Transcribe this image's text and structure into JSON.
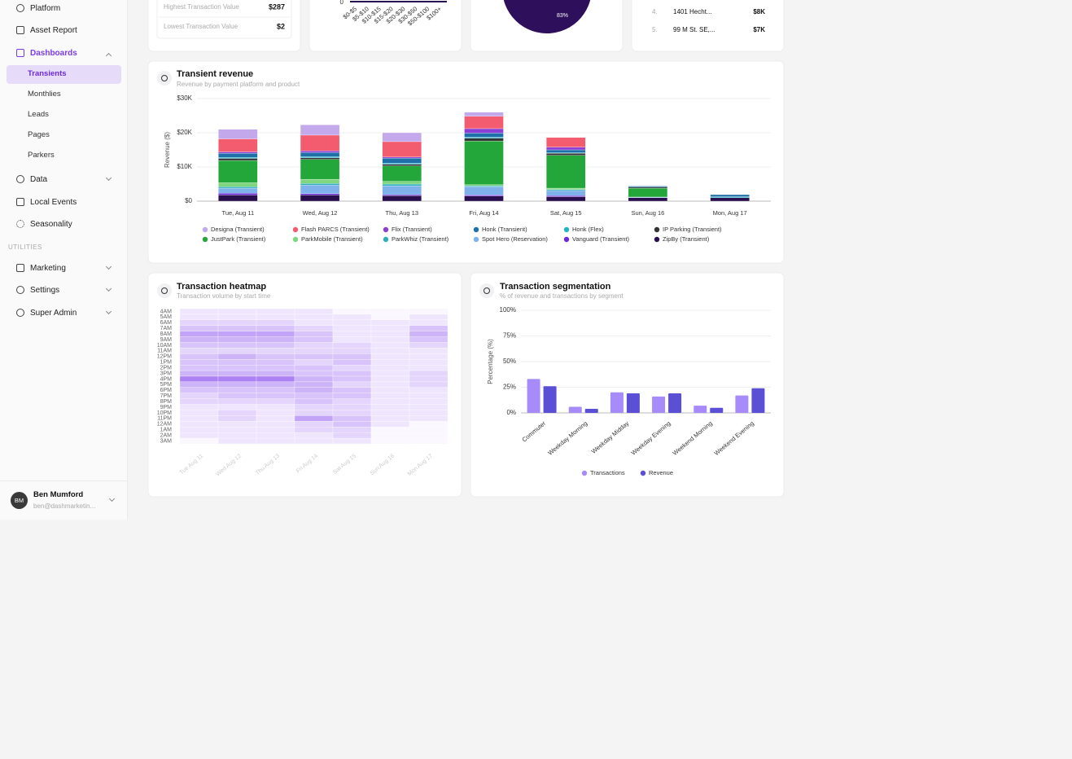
{
  "sidebar": {
    "nav": [
      "Platform",
      "Asset Report",
      "Dashboards"
    ],
    "dashboards": [
      "Transients",
      "Monthlies",
      "Leads",
      "Pages",
      "Parkers"
    ],
    "nav2": [
      "Data",
      "Local Events",
      "Seasonality"
    ],
    "utilities_heading": "UTILITIES",
    "utilities": [
      "Marketing",
      "Settings",
      "Super Admin"
    ],
    "user": {
      "initials": "BM",
      "name": "Ben Mumford",
      "email": "ben@dashmarketin..."
    }
  },
  "summary_card": {
    "rows": [
      {
        "label": "Highest Transaction Value",
        "value": "$287"
      },
      {
        "label": "Lowest Transaction Value",
        "value": "$2"
      }
    ]
  },
  "distribution_card": {
    "chart": {
      "type": "bar",
      "categories": [
        "$0-$5",
        "$5-$10",
        "$10-$15",
        "$15-$20",
        "$20-$30",
        "$30-$50",
        "$50-$100",
        "$100+"
      ],
      "yticks": [
        0
      ]
    }
  },
  "share_card": {
    "chart": {
      "type": "pie",
      "values": [
        83
      ],
      "value_labels": [
        "83%"
      ],
      "color": "#2e0f5c"
    }
  },
  "locations_card": {
    "rows": [
      {
        "rank": "4.",
        "name": "1401 Hecht...",
        "value": "$8K"
      },
      {
        "rank": "5.",
        "name": "99 M St. SE,...",
        "value": "$7K"
      }
    ]
  },
  "transient_revenue": {
    "title": "Transient revenue",
    "subtitle": "Revenue by payment platform and product",
    "chart": {
      "type": "bar",
      "stacked": true,
      "ylabel": "Revenue ($)",
      "categories": [
        "Tue, Aug 11",
        "Wed, Aug 12",
        "Thu, Aug 13",
        "Fri, Aug 14",
        "Sat, Aug 15",
        "Sun, Aug 16",
        "Mon, Aug 17"
      ],
      "series": [
        {
          "name": "Designa (Transient)",
          "color": "#c4a8ec",
          "values": [
            2800,
            3000,
            2600,
            1200,
            0,
            0,
            0
          ]
        },
        {
          "name": "Flash PARCS (Transient)",
          "color": "#f25c6e",
          "values": [
            3800,
            4600,
            4500,
            3600,
            2800,
            0,
            0
          ]
        },
        {
          "name": "Flix (Transient)",
          "color": "#8b3fd6",
          "values": [
            400,
            500,
            300,
            1300,
            800,
            0,
            0
          ]
        },
        {
          "name": "Honk (Transient)",
          "color": "#1f6fa8",
          "values": [
            1200,
            1200,
            1500,
            1200,
            800,
            300,
            600
          ]
        },
        {
          "name": "Honk (Flex)",
          "color": "#22b3c9",
          "values": [
            300,
            300,
            300,
            300,
            200,
            0,
            300
          ]
        },
        {
          "name": "IP Parking (Transient)",
          "color": "#333333",
          "values": [
            600,
            500,
            500,
            800,
            600,
            300,
            0
          ]
        },
        {
          "name": "JustPark (Transient)",
          "color": "#23a63a",
          "values": [
            6500,
            5800,
            4500,
            12800,
            9600,
            2600,
            0
          ]
        },
        {
          "name": "ParkMobile (Transient)",
          "color": "#7ed67e",
          "values": [
            1200,
            1200,
            800,
            300,
            400,
            0,
            0
          ]
        },
        {
          "name": "ParkWhiz (Transient)",
          "color": "#2bb0b8",
          "values": [
            400,
            500,
            500,
            300,
            300,
            0,
            0
          ]
        },
        {
          "name": "Spot Hero (Reservation)",
          "color": "#7fb2ea",
          "values": [
            1500,
            2500,
            2600,
            2400,
            1500,
            200,
            0
          ]
        },
        {
          "name": "Vanguard (Transient)",
          "color": "#6d28d9",
          "values": [
            500,
            400,
            300,
            300,
            300,
            0,
            0
          ]
        },
        {
          "name": "ZipBy (Transient)",
          "color": "#2a0f4f",
          "values": [
            1800,
            1800,
            1600,
            1500,
            1300,
            1000,
            1000
          ]
        }
      ],
      "ylim": [
        0,
        30000
      ],
      "yticks": [
        {
          "value": 0,
          "label": "$0"
        },
        {
          "value": 10000,
          "label": "$10K"
        },
        {
          "value": 20000,
          "label": "$20K"
        },
        {
          "value": 30000,
          "label": "$30K"
        }
      ],
      "grid": true,
      "legend": "bottom"
    }
  },
  "transaction_heatmap": {
    "title": "Transaction heatmap",
    "subtitle": "Transaction volume by start time",
    "chart": {
      "type": "heatmap",
      "color": "#7c3aed",
      "categories": [
        "Tue Aug 11",
        "Wed Aug 12",
        "Thu Aug 13",
        "Fri Aug 14",
        "Sat Aug 15",
        "Sun Aug 16",
        "Mon Aug 17"
      ],
      "rows": [
        "4AM",
        "5AM",
        "6AM",
        "7AM",
        "8AM",
        "9AM",
        "10AM",
        "11AM",
        "12PM",
        "1PM",
        "2PM",
        "3PM",
        "4PM",
        "5PM",
        "6PM",
        "7PM",
        "8PM",
        "9PM",
        "10PM",
        "11PM",
        "12AM",
        "1AM",
        "2AM",
        "3AM"
      ],
      "values": [
        [
          1,
          1,
          1,
          1,
          0,
          0,
          0
        ],
        [
          1,
          1,
          1,
          1,
          1,
          0,
          1
        ],
        [
          2,
          2,
          2,
          1,
          1,
          1,
          1
        ],
        [
          3,
          3,
          3,
          2,
          1,
          1,
          3
        ],
        [
          5,
          5,
          5,
          3,
          1,
          1,
          4
        ],
        [
          4,
          4,
          4,
          3,
          1,
          1,
          3
        ],
        [
          3,
          3,
          3,
          2,
          2,
          1,
          2
        ],
        [
          2,
          2,
          2,
          2,
          2,
          1,
          1
        ],
        [
          3,
          4,
          3,
          3,
          3,
          1,
          1
        ],
        [
          3,
          3,
          3,
          2,
          3,
          1,
          1
        ],
        [
          3,
          3,
          3,
          3,
          2,
          1,
          1
        ],
        [
          4,
          4,
          4,
          3,
          3,
          1,
          2
        ],
        [
          7,
          7,
          7,
          4,
          3,
          1,
          2
        ],
        [
          4,
          4,
          4,
          4,
          2,
          1,
          2
        ],
        [
          3,
          3,
          3,
          4,
          3,
          1,
          1
        ],
        [
          2,
          3,
          3,
          3,
          3,
          1,
          1
        ],
        [
          2,
          2,
          2,
          3,
          2,
          1,
          1
        ],
        [
          1,
          1,
          1,
          2,
          2,
          1,
          1
        ],
        [
          1,
          2,
          1,
          2,
          2,
          1,
          1
        ],
        [
          1,
          2,
          1,
          5,
          3,
          1,
          1
        ],
        [
          1,
          1,
          1,
          2,
          3,
          1,
          0
        ],
        [
          1,
          1,
          1,
          2,
          2,
          0,
          0
        ],
        [
          1,
          1,
          1,
          1,
          2,
          0,
          0
        ],
        [
          0,
          1,
          1,
          1,
          1,
          0,
          0
        ]
      ]
    }
  },
  "transaction_segmentation": {
    "title": "Transaction segmentation",
    "subtitle": "% of revenue and transactions by segment",
    "chart": {
      "type": "bar",
      "stacked": false,
      "ylabel": "Percentage (%)",
      "categories": [
        "Commuter",
        "Weekday Morning",
        "Weekday Midday",
        "Weekday Evening",
        "Weekend Morning",
        "Weekend Evening"
      ],
      "series": [
        {
          "name": "Transactions",
          "color": "#a78bfa",
          "values": [
            33,
            6,
            20,
            16,
            7,
            17
          ]
        },
        {
          "name": "Revenue",
          "color": "#5b4fd6",
          "values": [
            26,
            4,
            19,
            19,
            5,
            24
          ]
        }
      ],
      "ylim": [
        0,
        100
      ],
      "yticks": [
        {
          "value": 0,
          "label": "0%"
        },
        {
          "value": 25,
          "label": "25%"
        },
        {
          "value": 50,
          "label": "50%"
        },
        {
          "value": 75,
          "label": "75%"
        },
        {
          "value": 100,
          "label": "100%"
        }
      ],
      "grid": true,
      "legend": "bottom"
    }
  }
}
